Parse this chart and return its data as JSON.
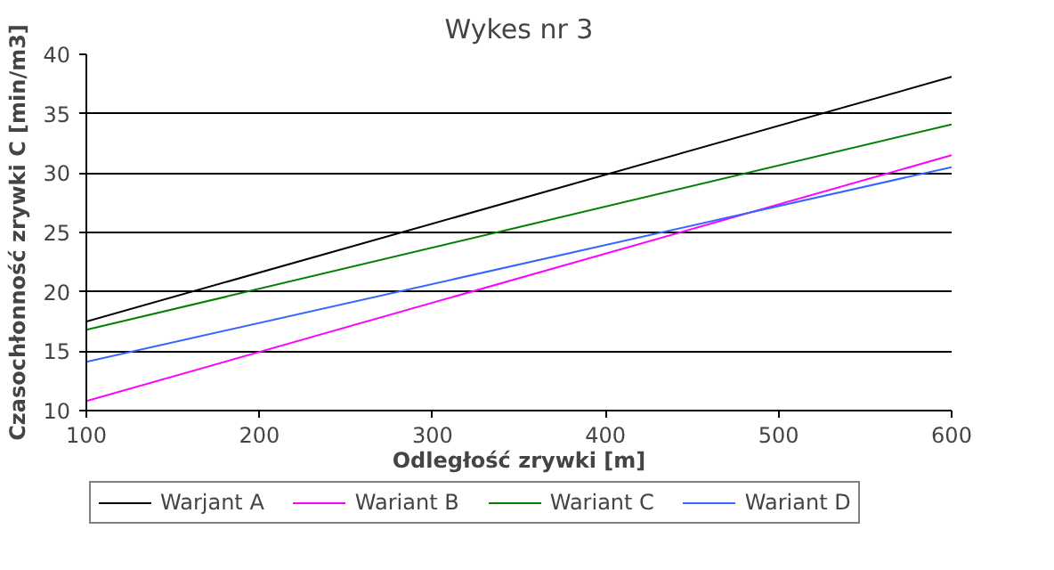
{
  "chart_data": {
    "type": "line",
    "title": "Wykes nr 3",
    "xlabel": "Odległość zrywki [m]",
    "ylabel": "Czasochłonność zrywki C [min/m3]",
    "x": [
      100,
      600
    ],
    "series": [
      {
        "name": "Warjant A",
        "color": "#000000",
        "values": [
          17.5,
          38.1
        ]
      },
      {
        "name": "Wariant B",
        "color": "#ff00ff",
        "values": [
          10.8,
          31.5
        ]
      },
      {
        "name": "Wariant C",
        "color": "#008000",
        "values": [
          16.8,
          34.1
        ]
      },
      {
        "name": "Wariant D",
        "color": "#3366ff",
        "values": [
          14.1,
          30.5
        ]
      }
    ],
    "xlim": [
      100,
      600
    ],
    "xticks": [
      100,
      200,
      300,
      400,
      500,
      600
    ],
    "ylim": [
      10,
      40
    ],
    "yticks": [
      10,
      15,
      20,
      25,
      30,
      35,
      40
    ],
    "grid": "y",
    "legend": "bottom",
    "marker": "none",
    "line_style": "solid"
  }
}
